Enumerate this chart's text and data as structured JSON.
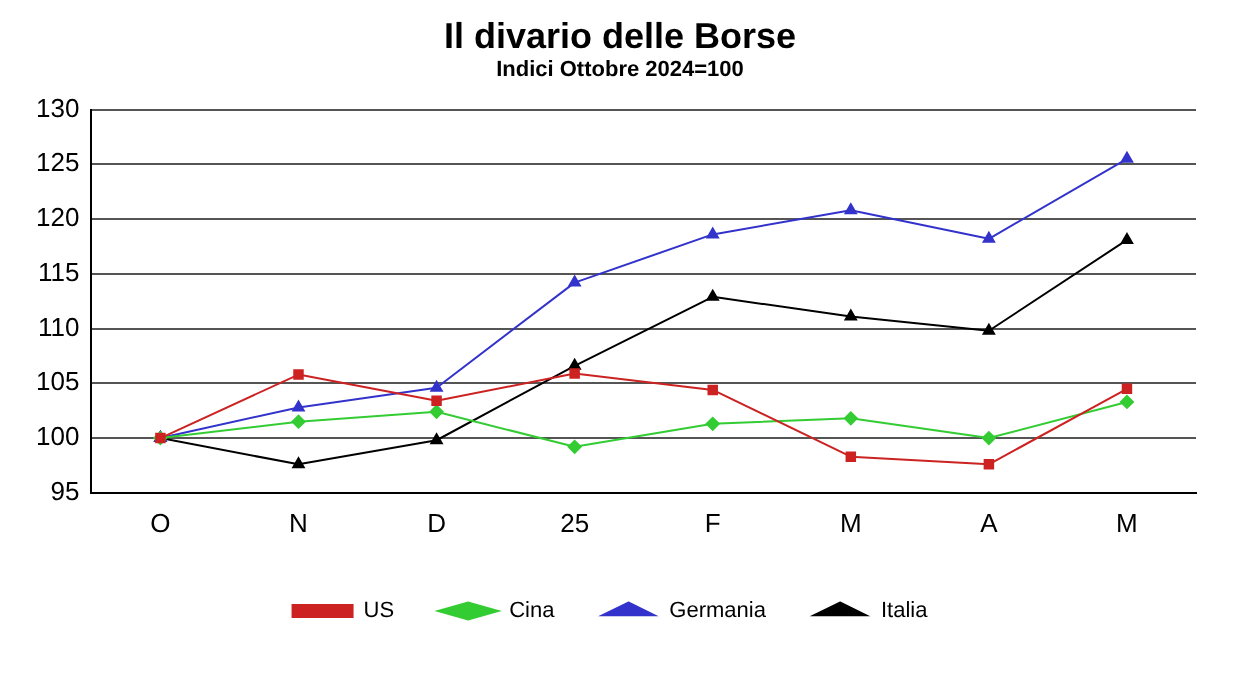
{
  "chart_data": {
    "type": "line",
    "title": "Il divario delle Borse",
    "subtitle": "Indici Ottobre 2024=100",
    "categories": [
      "O",
      "N",
      "D",
      "25",
      "F",
      "M",
      "A",
      "M"
    ],
    "series": [
      {
        "name": "US",
        "color": "#cc2222",
        "marker": "square",
        "values": [
          100,
          105.8,
          103.4,
          105.9,
          104.4,
          98.3,
          97.6,
          104.5
        ]
      },
      {
        "name": "Cina",
        "color": "#33cc33",
        "marker": "diamond",
        "values": [
          100,
          101.5,
          102.4,
          99.2,
          101.3,
          101.8,
          100,
          103.3
        ]
      },
      {
        "name": "Germania",
        "color": "#3333cc",
        "marker": "triangle",
        "values": [
          100,
          102.8,
          104.6,
          114.2,
          118.6,
          120.8,
          118.2,
          125.5
        ]
      },
      {
        "name": "Italia",
        "color": "#000000",
        "marker": "triangle",
        "values": [
          100,
          97.6,
          99.8,
          106.6,
          112.9,
          111.1,
          109.8,
          118.1
        ]
      }
    ],
    "ylim": [
      95,
      130
    ],
    "yticks": [
      95,
      100,
      105,
      110,
      115,
      120,
      125,
      130
    ],
    "grid": "y",
    "legend": "bottom",
    "line_style": "solid"
  }
}
